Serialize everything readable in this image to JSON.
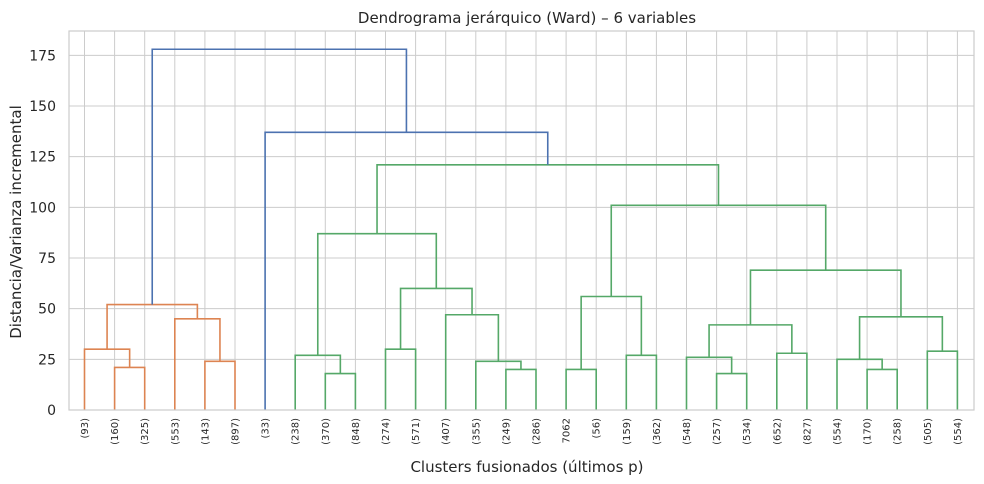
{
  "chart_data": {
    "type": "dendrogram",
    "title": "Dendrograma jerárquico (Ward) – 6 variables",
    "xlabel": "Clusters fusionados (últimos p)",
    "ylabel": "Distancia/Varianza incremental",
    "ylim": [
      0,
      187
    ],
    "yticks": [
      0,
      25,
      50,
      75,
      100,
      125,
      150,
      175
    ],
    "grid": true,
    "colors": {
      "cluster1": "#dd8452",
      "cluster2": "#55a868",
      "above": "#4c72b0"
    },
    "leaves": [
      "(93)",
      "(160)",
      "(325)",
      "(553)",
      "(143)",
      "(897)",
      "(33)",
      "(238)",
      "(370)",
      "(848)",
      "(274)",
      "(571)",
      "(407)",
      "(355)",
      "(249)",
      "(286)",
      "7062",
      "(56)",
      "(159)",
      "(362)",
      "(548)",
      "(257)",
      "(534)",
      "(652)",
      "(827)",
      "(554)",
      "(170)",
      "(258)",
      "(505)",
      "(554)"
    ],
    "merges": [
      {
        "a": 1,
        "b": 2,
        "height": 21,
        "color": "cluster1"
      },
      {
        "a": 0,
        "b": "m0",
        "height": 30,
        "color": "cluster1"
      },
      {
        "a": 4,
        "b": 5,
        "height": 24,
        "color": "cluster1"
      },
      {
        "a": 3,
        "b": "m2",
        "height": 45,
        "color": "cluster1"
      },
      {
        "a": "m1",
        "b": "m3",
        "height": 52,
        "color": "cluster1"
      },
      {
        "a": 8,
        "b": 9,
        "height": 18,
        "color": "cluster2"
      },
      {
        "a": 7,
        "b": "m5",
        "height": 27,
        "color": "cluster2"
      },
      {
        "a": 10,
        "b": 11,
        "height": 30,
        "color": "cluster2"
      },
      {
        "a": 14,
        "b": 15,
        "height": 20,
        "color": "cluster2"
      },
      {
        "a": 13,
        "b": "m8",
        "height": 24,
        "color": "cluster2"
      },
      {
        "a": 12,
        "b": "m9",
        "height": 47,
        "color": "cluster2"
      },
      {
        "a": "m7",
        "b": "m10",
        "height": 60,
        "color": "cluster2"
      },
      {
        "a": "m6",
        "b": "m11",
        "height": 87,
        "color": "cluster2"
      },
      {
        "a": 16,
        "b": 17,
        "height": 20,
        "color": "cluster2"
      },
      {
        "a": 18,
        "b": 19,
        "height": 27,
        "color": "cluster2"
      },
      {
        "a": "m13",
        "b": "m14",
        "height": 56,
        "color": "cluster2"
      },
      {
        "a": 21,
        "b": 22,
        "height": 18,
        "color": "cluster2"
      },
      {
        "a": 20,
        "b": "m16",
        "height": 26,
        "color": "cluster2"
      },
      {
        "a": 23,
        "b": 24,
        "height": 28,
        "color": "cluster2"
      },
      {
        "a": "m17",
        "b": "m18",
        "height": 42,
        "color": "cluster2"
      },
      {
        "a": 26,
        "b": 27,
        "height": 20,
        "color": "cluster2"
      },
      {
        "a": 25,
        "b": "m20",
        "height": 25,
        "color": "cluster2"
      },
      {
        "a": 28,
        "b": 29,
        "height": 29,
        "color": "cluster2"
      },
      {
        "a": "m21",
        "b": "m22",
        "height": 46,
        "color": "cluster2"
      },
      {
        "a": "m19",
        "b": "m23",
        "height": 69,
        "color": "cluster2"
      },
      {
        "a": "m15",
        "b": "m24",
        "height": 101,
        "color": "cluster2"
      },
      {
        "a": "m12",
        "b": "m25",
        "height": 121,
        "color": "cluster2"
      },
      {
        "a": 6,
        "b": "m26",
        "height": 137,
        "color": "above"
      },
      {
        "a": "m4",
        "b": "m27",
        "height": 178,
        "color": "above"
      }
    ]
  }
}
